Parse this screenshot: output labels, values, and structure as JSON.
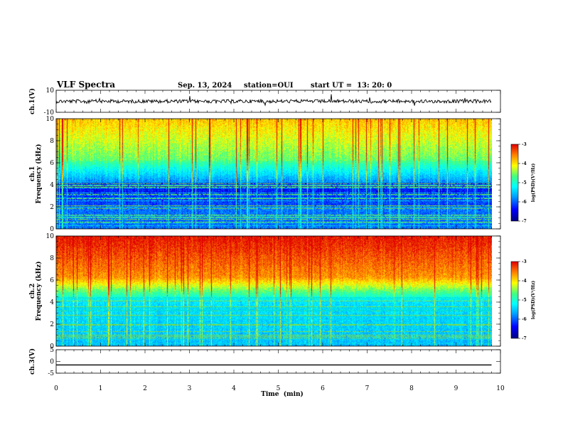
{
  "header": {
    "title": "VLF Spectra",
    "date": "Sep. 13, 2024",
    "station": "station=OUI",
    "start": "start UT =  13: 20: 0"
  },
  "chart_data": [
    {
      "type": "line",
      "panel": "ch1-waveform",
      "ylabel": "ch.1(V)",
      "ylim": [
        -10,
        10
      ],
      "yticks": [
        "10",
        "-10"
      ],
      "x": [
        0,
        9.8
      ],
      "values": [
        0,
        0
      ],
      "color": "#000000"
    },
    {
      "type": "heatmap",
      "panel": "ch1-spectrogram",
      "ylabel": "ch.1\nFrequency (kHz)",
      "ylim": [
        0,
        10
      ],
      "yticks": [
        "0",
        "2",
        "4",
        "6",
        "8",
        "10"
      ],
      "xlim": [
        0,
        9.8
      ],
      "colorbar": {
        "label": "log(PSD)(V²/Hz)",
        "range": [
          -7,
          -3
        ],
        "ticks": [
          "-3",
          "-4",
          "-5",
          "-6",
          "-7"
        ]
      },
      "dominant": "blue below 6 kHz, green/yellow above"
    },
    {
      "type": "heatmap",
      "panel": "ch2-spectrogram",
      "ylabel": "ch.2\nFrequency (kHz)",
      "ylim": [
        0,
        10
      ],
      "yticks": [
        "0",
        "2",
        "4",
        "6",
        "8",
        "10"
      ],
      "xlim": [
        0,
        9.8
      ],
      "colorbar": {
        "label": "log(PSD)(V²/Hz)",
        "range": [
          -7,
          -3
        ],
        "ticks": [
          "-3",
          "-4",
          "-5",
          "-6",
          "-7"
        ]
      },
      "dominant": "red/orange above 6 kHz, blue/cyan below"
    },
    {
      "type": "line",
      "panel": "ch3-waveform",
      "ylabel": "ch.3(V)",
      "ylim": [
        -5,
        5
      ],
      "yticks": [
        "5",
        "0",
        "-5"
      ],
      "x": [
        0,
        9.8
      ],
      "values": [
        -1.5,
        -1.5
      ],
      "color": "#000000"
    }
  ],
  "xaxis": {
    "label": "Time  (min)",
    "ticks": [
      "0",
      "1",
      "2",
      "3",
      "4",
      "5",
      "6",
      "7",
      "8",
      "9",
      "10"
    ],
    "range": [
      0,
      10
    ]
  },
  "colors": {
    "colormap": [
      "#00007f",
      "#0000ff",
      "#0080ff",
      "#00ffff",
      "#80ff80",
      "#ffff00",
      "#ff8000",
      "#ff0000"
    ]
  }
}
